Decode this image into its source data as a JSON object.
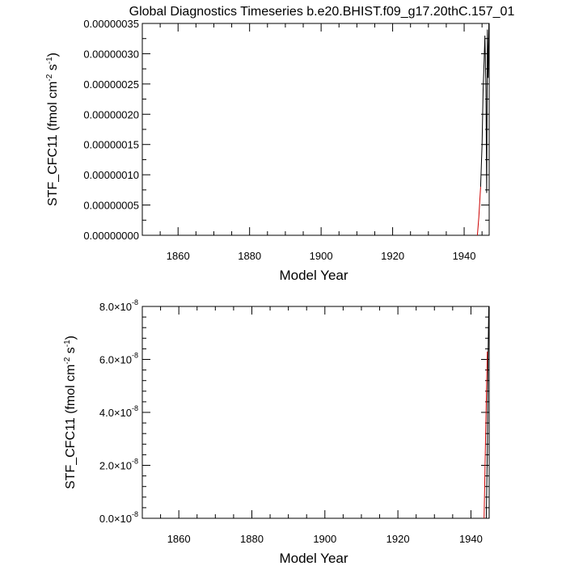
{
  "figure": {
    "title": "Global Diagnostics Timeseries b.e20.BHIST.f09_g17.20thC.157_01"
  },
  "chart_data": [
    {
      "type": "line",
      "title": "Global Diagnostics Timeseries b.e20.BHIST.f09_g17.20thC.157_01",
      "xlabel": "Model Year",
      "ylabel": "STF_CFC11 (fmol cm-2 s-1)",
      "xlim": [
        1850,
        1947
      ],
      "ylim": [
        0,
        3.5e-07
      ],
      "x_ticks": [
        1860,
        1880,
        1900,
        1920,
        1940
      ],
      "x_tick_labels": [
        "1860",
        "1880",
        "1900",
        "1920",
        "1940"
      ],
      "y_ticks": [
        0,
        5e-08,
        1e-07,
        1.5e-07,
        2e-07,
        2.5e-07,
        3e-07,
        3.5e-07
      ],
      "y_tick_labels": [
        "0.00000000",
        "0.00000005",
        "0.00000010",
        "0.00000015",
        "0.00000020",
        "0.00000025",
        "0.00000030",
        "0.00000035"
      ],
      "grid": false,
      "series": [
        {
          "color": "#000000",
          "x": [
            1944.6,
            1945.0,
            1945.3,
            1945.6,
            1945.8,
            1946.1,
            1946.3,
            1946.5,
            1946.7,
            1946.9
          ],
          "y": [
            8e-08,
            1.5e-07,
            2.4e-07,
            2.9e-07,
            3.3e-07,
            2.4e-07,
            7e-08,
            3.4e-07,
            2.6e-07,
            3.5e-07
          ]
        },
        {
          "color": "#cc0000",
          "x": [
            1943.7,
            1944.1,
            1944.6
          ],
          "y": [
            0,
            3e-08,
            8e-08
          ]
        }
      ]
    },
    {
      "type": "line",
      "xlabel": "Model Year",
      "ylabel": "STF_CFC11 (fmol cm-2 s-1)",
      "xlim": [
        1850,
        1945
      ],
      "ylim": [
        0,
        8e-08
      ],
      "x_ticks": [
        1860,
        1880,
        1900,
        1920,
        1940
      ],
      "x_tick_labels": [
        "1860",
        "1880",
        "1900",
        "1920",
        "1940"
      ],
      "y_ticks": [
        0,
        2e-08,
        4e-08,
        6e-08,
        8e-08
      ],
      "y_tick_mantissas": [
        "0.0",
        "2.0",
        "4.0",
        "6.0",
        "8.0"
      ],
      "y_tick_exponent": "-8",
      "grid": false,
      "series": [
        {
          "color": "#000000",
          "x": [
            1944.2,
            1944.5,
            1944.7,
            1944.9
          ],
          "y": [
            0,
            2.5e-08,
            6e-08,
            8e-08
          ]
        },
        {
          "color": "#cc0000",
          "x": [
            1943.6,
            1944.0,
            1944.5
          ],
          "y": [
            0,
            3e-08,
            6.3e-08
          ]
        }
      ]
    }
  ]
}
